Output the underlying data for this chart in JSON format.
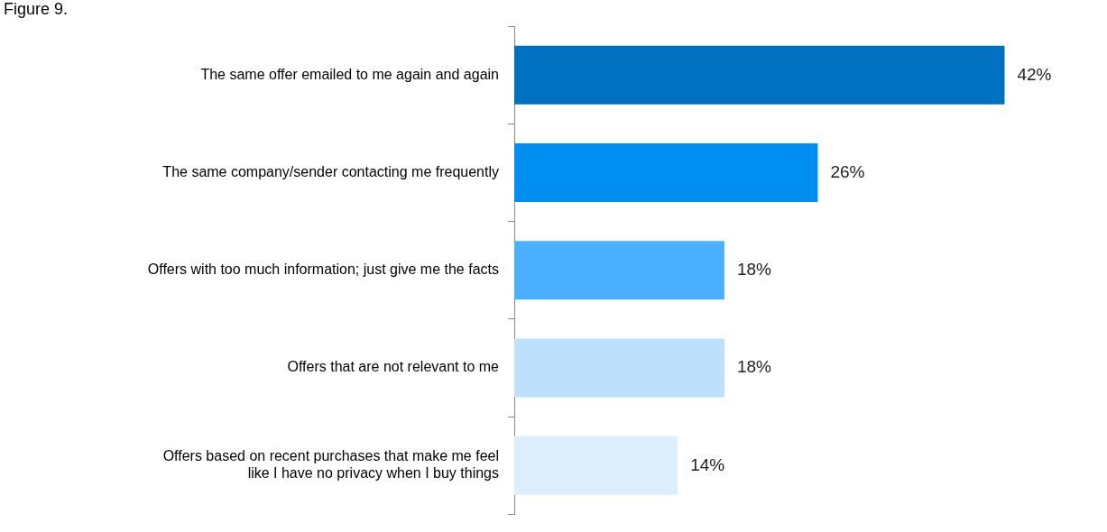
{
  "chart_data": {
    "type": "bar",
    "orientation": "horizontal",
    "title": "Figure 9.",
    "categories": [
      "The same offer emailed to me again and again",
      "The same company/sender contacting me frequently",
      "Offers with too much information; just give me the facts",
      "Offers that are not relevant to me",
      "Offers based on recent purchases that make me feel like I have no privacy when I buy things"
    ],
    "values": [
      42,
      26,
      18,
      18,
      14
    ],
    "value_labels": [
      "42%",
      "26%",
      "18%",
      "18%",
      "14%"
    ],
    "colors": [
      "#0070c0",
      "#008ef0",
      "#4bb0ff",
      "#bde1fc",
      "#dcedfc"
    ],
    "grid": false,
    "legend": false
  }
}
